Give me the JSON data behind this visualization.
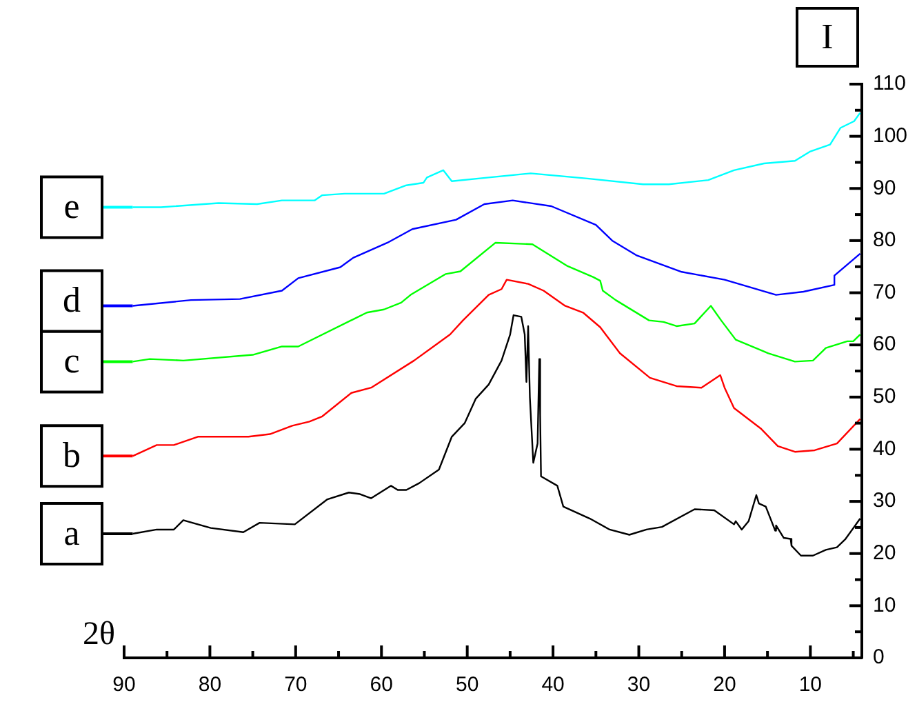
{
  "chart_data": {
    "type": "line",
    "xlabel": "2θ",
    "ylabel": "I",
    "xlim": [
      90,
      4
    ],
    "ylim": [
      0,
      110
    ],
    "xticks": [
      90,
      {
        "value": 85,
        "label": null
      },
      80,
      {
        "value": 75,
        "label": null
      },
      70,
      {
        "value": 65,
        "label": null
      },
      60,
      {
        "value": 55,
        "label": null
      },
      50,
      {
        "value": 45,
        "label": null
      },
      40,
      {
        "value": 35,
        "label": null
      },
      30,
      {
        "value": 25,
        "label": null
      },
      20,
      {
        "value": 15,
        "label": null
      },
      10,
      {
        "value": 5,
        "label": null
      }
    ],
    "yticks": [
      0,
      {
        "value": 5,
        "label": null
      },
      10,
      {
        "value": 15,
        "label": null
      },
      20,
      {
        "value": 25,
        "label": null
      },
      30,
      {
        "value": 35,
        "label": null
      },
      40,
      {
        "value": 45,
        "label": null
      },
      50,
      {
        "value": 55,
        "label": null
      },
      60,
      {
        "value": 65,
        "label": null
      },
      70,
      {
        "value": 75,
        "label": null
      },
      80,
      {
        "value": 85,
        "label": null
      },
      90,
      {
        "value": 95,
        "label": null
      },
      100,
      {
        "value": 105,
        "label": null
      },
      110
    ],
    "grid": false,
    "legend": "left",
    "marker": "none",
    "line_style": "solid",
    "series": [
      {
        "name": "a",
        "color": "#000000",
        "x": [
          89,
          86.2,
          84.2,
          83.1,
          79.9,
          76.1,
          74.2,
          70.1,
          66.3,
          63.8,
          62.5,
          61.2,
          58.9,
          58.1,
          57.1,
          55.6,
          53.3,
          51.8,
          50.3,
          49,
          47.5,
          46,
          45,
          44.6,
          43.7,
          43.3,
          43.1,
          42.9,
          42.7,
          42.3,
          41.8,
          41.6,
          41.5,
          41.4,
          39.5,
          38.8,
          35.7,
          33.4,
          31.1,
          29.1,
          27.3,
          23.5,
          21.2,
          18.9,
          18.7,
          18,
          17.2,
          16.3,
          16,
          15.2,
          14.1,
          14,
          13.1,
          12.3,
          12.2,
          11.1,
          9.7,
          8.2,
          6.9,
          5.9,
          4.2
        ],
        "values": [
          23.8,
          24.6,
          24.6,
          26.4,
          24.9,
          24.1,
          25.9,
          25.6,
          30.4,
          31.7,
          31.4,
          30.6,
          33,
          32.2,
          32.2,
          33.5,
          36.1,
          42.4,
          45,
          49.7,
          52.4,
          57,
          62,
          65.7,
          65.4,
          62,
          52.9,
          63.6,
          50,
          37.4,
          41.1,
          57.3,
          46.6,
          34.8,
          33,
          29,
          26.7,
          24.6,
          23.6,
          24.6,
          25.1,
          28.5,
          28.3,
          25.6,
          26.2,
          24.6,
          26.2,
          31.2,
          29.6,
          29,
          24.4,
          25.4,
          23,
          22.8,
          21.5,
          19.6,
          19.6,
          20.7,
          21.2,
          22.8,
          26.7
        ]
      },
      {
        "name": "b",
        "color": "#ff0000",
        "x": [
          89,
          86.2,
          84.2,
          81.4,
          75.5,
          73,
          70.4,
          68.4,
          66.9,
          63.5,
          61.2,
          56.2,
          52,
          50.5,
          47.5,
          46,
          45.4,
          42.9,
          41.1,
          38.6,
          36.5,
          34.5,
          32.2,
          28.7,
          25.6,
          22.7,
          20.5,
          20,
          18.9,
          15.8,
          13.8,
          11.8,
          9.5,
          6.9,
          4.2
        ],
        "values": [
          38.7,
          40.8,
          40.8,
          42.4,
          42.4,
          42.9,
          44.5,
          45.3,
          46.3,
          50.8,
          51.8,
          57,
          62,
          64.7,
          69.6,
          70.7,
          72.5,
          71.7,
          70.4,
          67.5,
          66.2,
          63.4,
          58.4,
          53.7,
          52.1,
          51.8,
          54.2,
          51.8,
          47.9,
          44,
          40.6,
          39.5,
          39.8,
          41.1,
          45.8
        ]
      },
      {
        "name": "c",
        "color": "#00ff00",
        "x": [
          89,
          87,
          83.1,
          75,
          71.6,
          69.7,
          63.3,
          61.7,
          59.7,
          57.7,
          56.6,
          52.5,
          50.8,
          46.7,
          42.4,
          38.3,
          35.3,
          34.5,
          34.2,
          32.7,
          28.8,
          27.1,
          25.6,
          23.5,
          21.6,
          20.4,
          18.7,
          14.9,
          11.8,
          9.7,
          8.2,
          5.7,
          5,
          4.2
        ],
        "values": [
          56.8,
          57.3,
          57,
          58.1,
          59.7,
          59.7,
          64.9,
          66.2,
          66.8,
          68.1,
          69.6,
          73.6,
          74.1,
          79.6,
          79.3,
          75.1,
          73,
          72.3,
          70.4,
          68.6,
          64.7,
          64.4,
          63.6,
          64.1,
          67.5,
          64.7,
          61,
          58.4,
          56.8,
          57,
          59.4,
          60.7,
          60.7,
          62
        ]
      },
      {
        "name": "d",
        "color": "#0000ff",
        "x": [
          89,
          82.2,
          76.5,
          71.6,
          69.7,
          64.8,
          63.3,
          59.3,
          56.4,
          51.3,
          48,
          44.7,
          40.2,
          35,
          33.1,
          30.3,
          25,
          20,
          14,
          10.8,
          7.2,
          7.2,
          4.2
        ],
        "values": [
          67.5,
          68.6,
          68.8,
          70.4,
          72.8,
          74.9,
          76.7,
          79.6,
          82.2,
          84,
          87,
          87.7,
          86.6,
          83,
          80,
          77.2,
          74,
          72.5,
          69.6,
          70.2,
          71.5,
          73.3,
          77.5
        ]
      },
      {
        "name": "e",
        "color": "#00ffff",
        "x": [
          89,
          85.7,
          79,
          74.5,
          71.6,
          67.8,
          66.9,
          64.3,
          59.7,
          57.1,
          55.1,
          54.7,
          52.8,
          51.8,
          47.5,
          42.6,
          36,
          29.5,
          26.5,
          21.9,
          18.9,
          15.4,
          11.8,
          10,
          7.7,
          6.5,
          4.9,
          4.2
        ],
        "values": [
          86.4,
          86.4,
          87.2,
          87,
          87.7,
          87.7,
          88.7,
          89,
          89,
          90.6,
          91.1,
          92.1,
          93.5,
          91.4,
          92.1,
          92.9,
          91.9,
          90.8,
          90.8,
          91.6,
          93.5,
          94.8,
          95.3,
          97.1,
          98.4,
          101.6,
          102.9,
          104.5
        ]
      }
    ]
  }
}
